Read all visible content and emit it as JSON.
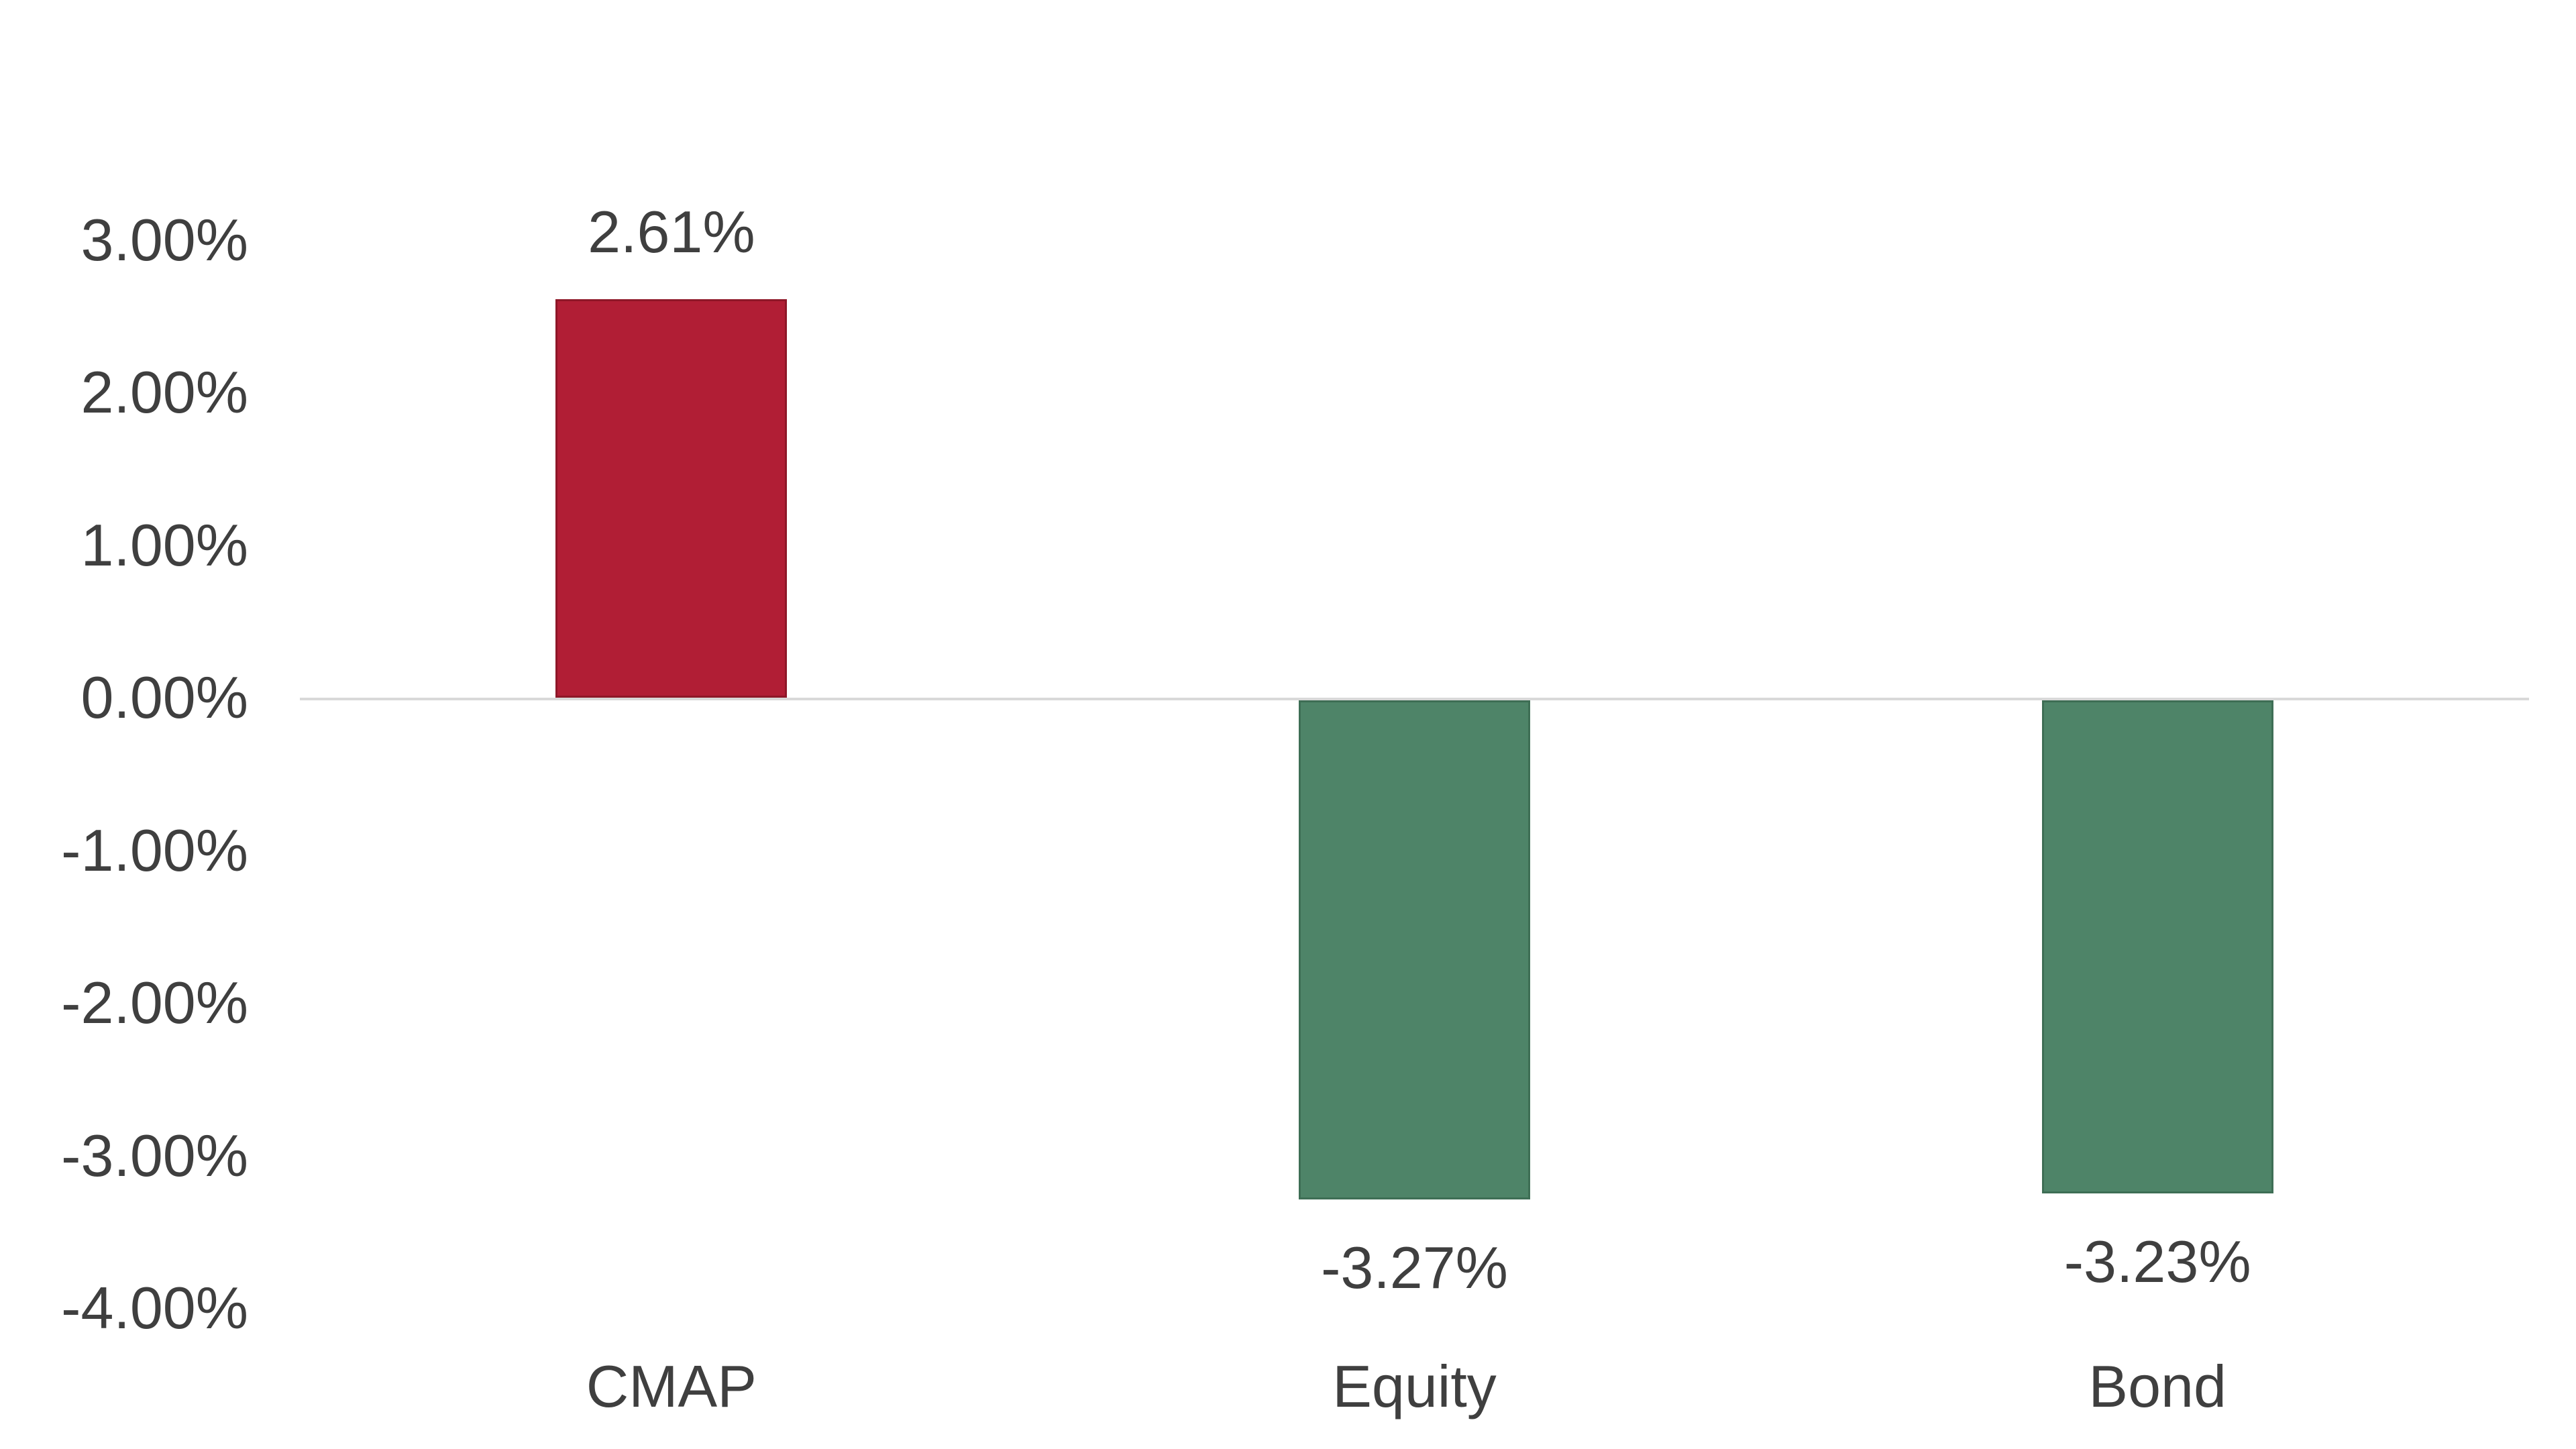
{
  "chart_data": {
    "type": "bar",
    "title": "",
    "xlabel": "",
    "ylabel": "",
    "categories": [
      "CMAP",
      "Equity",
      "Bond"
    ],
    "values": [
      2.61,
      -3.27,
      -3.23
    ],
    "data_labels": [
      "2.61%",
      "-3.27%",
      "-3.23%"
    ],
    "bar_colors": [
      "#B11E35",
      "#4E8468",
      "#4E8468"
    ],
    "bar_border_colors": [
      "#8E1728",
      "#3E6E55",
      "#3E6E55"
    ],
    "y_axis": {
      "ticks": [
        {
          "label": "3.00%",
          "value": 3
        },
        {
          "label": "2.00%",
          "value": 2
        },
        {
          "label": "1.00%",
          "value": 1
        },
        {
          "label": "0.00%",
          "value": 0
        },
        {
          "label": "-1.00%",
          "value": -1
        },
        {
          "label": "-2.00%",
          "value": -2
        },
        {
          "label": "-3.00%",
          "value": -3
        },
        {
          "label": "-4.00%",
          "value": -4
        }
      ]
    },
    "ylim": [
      -4,
      3
    ],
    "grid": false,
    "legend": false,
    "axis_line_color": "#D9D9D9",
    "text_color": "#3F3F3F",
    "background_color": "#FFFFFF"
  }
}
